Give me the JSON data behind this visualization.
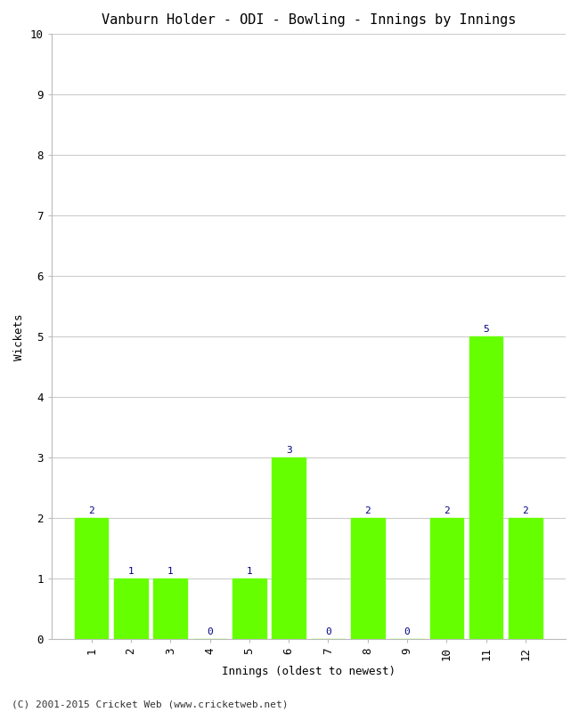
{
  "title": "Vanburn Holder - ODI - Bowling - Innings by Innings",
  "xlabel": "Innings (oldest to newest)",
  "ylabel": "Wickets",
  "categories": [
    "1",
    "2",
    "3",
    "4",
    "5",
    "6",
    "7",
    "8",
    "9",
    "10",
    "11",
    "12"
  ],
  "values": [
    2,
    1,
    1,
    0,
    1,
    3,
    0,
    2,
    0,
    2,
    5,
    2
  ],
  "bar_color": "#66ff00",
  "bar_edge_color": "#66ff00",
  "ylim": [
    0,
    10
  ],
  "yticks": [
    0,
    1,
    2,
    3,
    4,
    5,
    6,
    7,
    8,
    9,
    10
  ],
  "label_color": "#000080",
  "label_fontsize": 8,
  "title_fontsize": 11,
  "axis_label_fontsize": 9,
  "tick_fontsize": 9,
  "footer": "(C) 2001-2015 Cricket Web (www.cricketweb.net)",
  "footer_fontsize": 8,
  "background_color": "#ffffff",
  "grid_color": "#cccccc",
  "bar_width": 0.85
}
